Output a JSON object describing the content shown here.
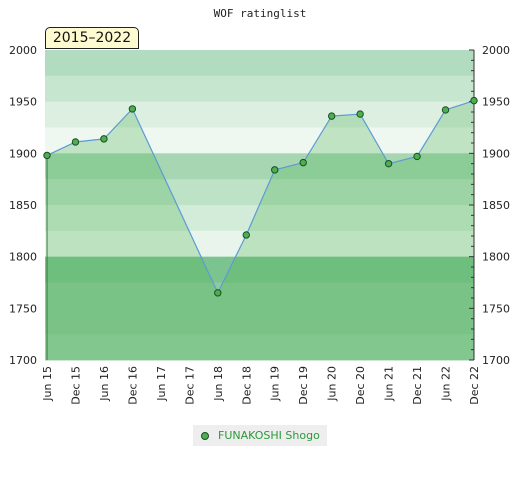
{
  "chart_data": {
    "type": "area",
    "title": "WOF ratinglist",
    "period_label": "2015–2022",
    "categories": [
      "Jun 15",
      "Dec 15",
      "Jun 16",
      "Dec 16",
      "Jun 17",
      "Dec 17",
      "Jun 18",
      "Dec 18",
      "Jun 19",
      "Dec 19",
      "Jun 20",
      "Dec 20",
      "Jun 21",
      "Dec 21",
      "Jun 22",
      "Dec 22"
    ],
    "series": [
      {
        "name": "FUNAKOSHI Shogo",
        "values": [
          1898,
          1911,
          1914,
          1943,
          null,
          null,
          1765,
          1821,
          1884,
          1891,
          1936,
          1938,
          1890,
          1897,
          1942,
          1951
        ]
      }
    ],
    "ylim": [
      1700,
      2000
    ],
    "yticks": [
      2000,
      1950,
      1900,
      1850,
      1800,
      1750,
      1700
    ],
    "grid": true,
    "legend_position": "bottom",
    "colors": {
      "line": "#5b9bd5",
      "marker_fill": "#4caf50",
      "marker_stroke": "#1e4d24",
      "area_fill": "#4caf50"
    }
  }
}
